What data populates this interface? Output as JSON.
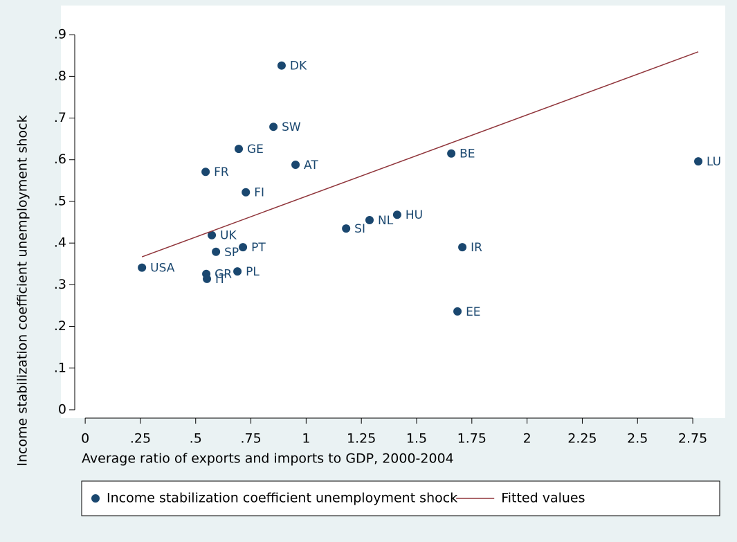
{
  "chart_data": {
    "type": "scatter",
    "x_label": "Average ratio of exports and imports to GDP, 2000-2004",
    "y_label": "Income stabilization coefficient unemployment shock",
    "xlim": [
      -0.11,
      2.897
    ],
    "ylim": [
      -0.02,
      0.97
    ],
    "xticks": [
      0,
      {
        "value": 0.25,
        "label": ".25"
      },
      {
        "value": 0.5,
        "label": ".5"
      },
      {
        "value": 0.75,
        "label": ".75"
      },
      1,
      1.25,
      1.5,
      1.75,
      2,
      2.25,
      2.5,
      2.75
    ],
    "yticks": [
      0,
      {
        "value": 0.1,
        "label": ".1"
      },
      {
        "value": 0.2,
        "label": ".2"
      },
      {
        "value": 0.3,
        "label": ".3"
      },
      {
        "value": 0.4,
        "label": ".4"
      },
      {
        "value": 0.5,
        "label": ".5"
      },
      {
        "value": 0.6,
        "label": ".6"
      },
      {
        "value": 0.7,
        "label": ".7"
      },
      {
        "value": 0.8,
        "label": ".8"
      },
      {
        "value": 0.9,
        "label": ".9"
      }
    ],
    "grid": false,
    "series": [
      {
        "name": "Income stabilization coefficient unemployment shock",
        "type": "scatter",
        "color": "#1a476f",
        "point_labels": [
          "DK",
          "SW",
          "GE",
          "AT",
          "FR",
          "FI",
          "BE",
          "LU",
          "HU",
          "NL",
          "SI",
          "UK",
          "PT",
          "SP",
          "IR",
          "USA",
          "GR",
          "PL",
          "IT",
          "EE"
        ],
        "x": [
          0.889,
          0.852,
          0.695,
          0.952,
          0.545,
          0.727,
          1.657,
          2.775,
          1.412,
          1.287,
          1.181,
          0.573,
          0.714,
          0.592,
          1.707,
          0.257,
          0.548,
          0.689,
          0.551,
          1.685
        ],
        "values": [
          0.826,
          0.679,
          0.626,
          0.588,
          0.571,
          0.522,
          0.615,
          0.596,
          0.468,
          0.455,
          0.435,
          0.419,
          0.39,
          0.379,
          0.39,
          0.341,
          0.326,
          0.332,
          0.314,
          0.236
        ]
      },
      {
        "name": "Fitted values",
        "type": "line",
        "color": "#90353b",
        "x": [
          0.257,
          2.775
        ],
        "values": [
          0.367,
          0.859
        ]
      }
    ]
  }
}
